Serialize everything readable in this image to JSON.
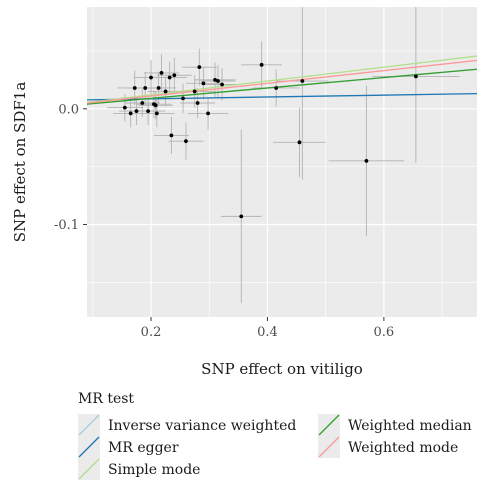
{
  "chart_data": {
    "type": "scatter",
    "xlabel": "SNP effect on vitiligo",
    "ylabel": "SNP effect on SDF1a",
    "xlim": [
      0.09,
      0.76
    ],
    "ylim": [
      -0.18,
      0.088
    ],
    "xticks": [
      0.2,
      0.4,
      0.6
    ],
    "xtick_labels": [
      "0.2",
      "0.4",
      "0.6"
    ],
    "yticks": [
      0.0,
      -0.1
    ],
    "ytick_labels": [
      "0.0",
      "-0.1"
    ],
    "grid": true,
    "points": [
      {
        "x": 0.155,
        "y": 0.001,
        "xerr": 0.03,
        "yerr": 0.012
      },
      {
        "x": 0.165,
        "y": -0.004,
        "xerr": 0.03,
        "yerr": 0.012
      },
      {
        "x": 0.172,
        "y": 0.018,
        "xerr": 0.03,
        "yerr": 0.015
      },
      {
        "x": 0.175,
        "y": -0.002,
        "xerr": 0.03,
        "yerr": 0.012
      },
      {
        "x": 0.185,
        "y": 0.005,
        "xerr": 0.03,
        "yerr": 0.012
      },
      {
        "x": 0.19,
        "y": 0.018,
        "xerr": 0.03,
        "yerr": 0.014
      },
      {
        "x": 0.195,
        "y": -0.002,
        "xerr": 0.03,
        "yerr": 0.012
      },
      {
        "x": 0.2,
        "y": 0.027,
        "xerr": 0.03,
        "yerr": 0.015
      },
      {
        "x": 0.205,
        "y": 0.004,
        "xerr": 0.03,
        "yerr": 0.012
      },
      {
        "x": 0.208,
        "y": 0.003,
        "xerr": 0.03,
        "yerr": 0.012
      },
      {
        "x": 0.21,
        "y": -0.004,
        "xerr": 0.03,
        "yerr": 0.012
      },
      {
        "x": 0.213,
        "y": 0.018,
        "xerr": 0.03,
        "yerr": 0.014
      },
      {
        "x": 0.218,
        "y": 0.031,
        "xerr": 0.03,
        "yerr": 0.016
      },
      {
        "x": 0.225,
        "y": 0.015,
        "xerr": 0.03,
        "yerr": 0.013
      },
      {
        "x": 0.232,
        "y": 0.027,
        "xerr": 0.03,
        "yerr": 0.014
      },
      {
        "x": 0.235,
        "y": -0.023,
        "xerr": 0.03,
        "yerr": 0.016
      },
      {
        "x": 0.24,
        "y": 0.029,
        "xerr": 0.03,
        "yerr": 0.015
      },
      {
        "x": 0.255,
        "y": 0.009,
        "xerr": 0.03,
        "yerr": 0.013
      },
      {
        "x": 0.26,
        "y": -0.028,
        "xerr": 0.03,
        "yerr": 0.016
      },
      {
        "x": 0.275,
        "y": 0.015,
        "xerr": 0.035,
        "yerr": 0.014
      },
      {
        "x": 0.28,
        "y": 0.005,
        "xerr": 0.03,
        "yerr": 0.013
      },
      {
        "x": 0.283,
        "y": 0.036,
        "xerr": 0.03,
        "yerr": 0.016
      },
      {
        "x": 0.29,
        "y": 0.022,
        "xerr": 0.03,
        "yerr": 0.014
      },
      {
        "x": 0.298,
        "y": -0.004,
        "xerr": 0.035,
        "yerr": 0.014
      },
      {
        "x": 0.31,
        "y": 0.025,
        "xerr": 0.035,
        "yerr": 0.015
      },
      {
        "x": 0.315,
        "y": 0.024,
        "xerr": 0.03,
        "yerr": 0.014
      },
      {
        "x": 0.322,
        "y": 0.021,
        "xerr": 0.03,
        "yerr": 0.014
      },
      {
        "x": 0.355,
        "y": -0.093,
        "xerr": 0.035,
        "yerr": 0.075
      },
      {
        "x": 0.39,
        "y": 0.038,
        "xerr": 0.035,
        "yerr": 0.02
      },
      {
        "x": 0.415,
        "y": 0.018,
        "xerr": 0.04,
        "yerr": 0.016
      },
      {
        "x": 0.455,
        "y": -0.029,
        "xerr": 0.045,
        "yerr": 0.03
      },
      {
        "x": 0.46,
        "y": 0.024,
        "xerr": 0.045,
        "yerr": 0.085
      },
      {
        "x": 0.57,
        "y": -0.045,
        "xerr": 0.065,
        "yerr": 0.065
      },
      {
        "x": 0.655,
        "y": 0.028,
        "xerr": 0.075,
        "yerr": 0.075
      }
    ],
    "lines": [
      {
        "name": "Inverse variance weighted",
        "intercept": 0.0,
        "slope": 0.045,
        "color": "#a6cee3"
      },
      {
        "name": "MR egger",
        "intercept": 0.007,
        "slope": 0.008,
        "color": "#1f78b4"
      },
      {
        "name": "Simple mode",
        "intercept": 0.0,
        "slope": 0.06,
        "color": "#b2df8a"
      },
      {
        "name": "Weighted median",
        "intercept": 0.0,
        "slope": 0.045,
        "color": "#33a02c"
      },
      {
        "name": "Weighted mode",
        "intercept": 0.0,
        "slope": 0.055,
        "color": "#fb9a99"
      }
    ],
    "legend": {
      "title": "MR test",
      "placement": "bottom",
      "columns": [
        [
          "Inverse variance weighted",
          "MR egger",
          "Simple mode"
        ],
        [
          "Weighted median",
          "Weighted mode"
        ]
      ]
    },
    "colors": {
      "panel": "#ebebeb",
      "grid": "#ffffff",
      "point": "#000000",
      "errorbar": "#b3b3b3"
    }
  }
}
